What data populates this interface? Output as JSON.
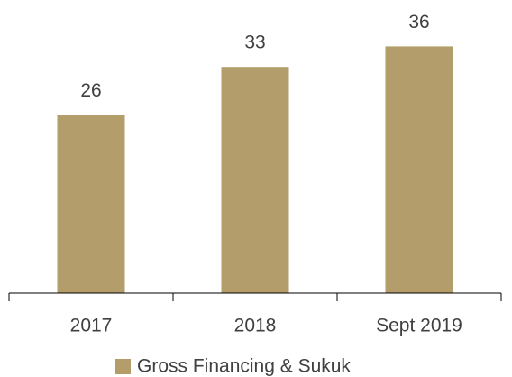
{
  "chart_data": {
    "type": "bar",
    "categories": [
      "2017",
      "2018",
      "Sept 2019"
    ],
    "series": [
      {
        "name": "Gross Financing & Sukuk",
        "color": "#b39e6b",
        "values": [
          26,
          33,
          36
        ]
      }
    ],
    "ylim": [
      0,
      40
    ],
    "grid": false,
    "legend": "bottom"
  }
}
